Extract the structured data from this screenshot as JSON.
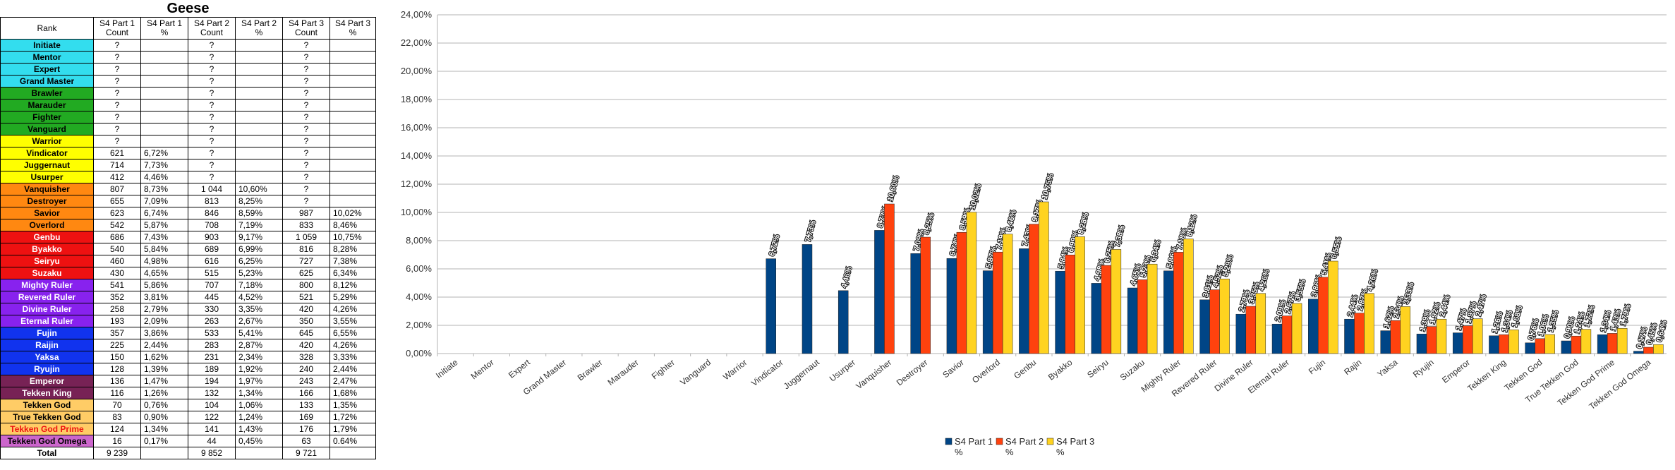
{
  "table": {
    "title": "Geese",
    "headers": [
      "Rank",
      "S4 Part 1 Count",
      "S4 Part 1 %",
      "S4 Part 2 Count",
      "S4 Part 2 %",
      "S4 Part 3 Count",
      "S4 Part 3 %"
    ],
    "rows": [
      {
        "rank": "Initiate",
        "color": "#33ddee",
        "text_color": "#000000",
        "c1": "?",
        "p1": "",
        "c2": "?",
        "p2": "",
        "c3": "?",
        "p3": ""
      },
      {
        "rank": "Mentor",
        "color": "#33ddee",
        "text_color": "#000000",
        "c1": "?",
        "p1": "",
        "c2": "?",
        "p2": "",
        "c3": "?",
        "p3": ""
      },
      {
        "rank": "Expert",
        "color": "#33ddee",
        "text_color": "#000000",
        "c1": "?",
        "p1": "",
        "c2": "?",
        "p2": "",
        "c3": "?",
        "p3": ""
      },
      {
        "rank": "Grand Master",
        "color": "#33ddee",
        "text_color": "#000000",
        "c1": "?",
        "p1": "",
        "c2": "?",
        "p2": "",
        "c3": "?",
        "p3": ""
      },
      {
        "rank": "Brawler",
        "color": "#22aa22",
        "text_color": "#000000",
        "c1": "?",
        "p1": "",
        "c2": "?",
        "p2": "",
        "c3": "?",
        "p3": ""
      },
      {
        "rank": "Marauder",
        "color": "#22aa22",
        "text_color": "#000000",
        "c1": "?",
        "p1": "",
        "c2": "?",
        "p2": "",
        "c3": "?",
        "p3": ""
      },
      {
        "rank": "Fighter",
        "color": "#22aa22",
        "text_color": "#000000",
        "c1": "?",
        "p1": "",
        "c2": "?",
        "p2": "",
        "c3": "?",
        "p3": ""
      },
      {
        "rank": "Vanguard",
        "color": "#22aa22",
        "text_color": "#000000",
        "c1": "?",
        "p1": "",
        "c2": "?",
        "p2": "",
        "c3": "?",
        "p3": ""
      },
      {
        "rank": "Warrior",
        "color": "#ffff00",
        "text_color": "#000000",
        "c1": "?",
        "p1": "",
        "c2": "?",
        "p2": "",
        "c3": "?",
        "p3": ""
      },
      {
        "rank": "Vindicator",
        "color": "#ffff00",
        "text_color": "#000000",
        "c1": "621",
        "p1": "6,72%",
        "c2": "?",
        "p2": "",
        "c3": "?",
        "p3": ""
      },
      {
        "rank": "Juggernaut",
        "color": "#ffff00",
        "text_color": "#000000",
        "c1": "714",
        "p1": "7,73%",
        "c2": "?",
        "p2": "",
        "c3": "?",
        "p3": ""
      },
      {
        "rank": "Usurper",
        "color": "#ffff00",
        "text_color": "#000000",
        "c1": "412",
        "p1": "4,46%",
        "c2": "?",
        "p2": "",
        "c3": "?",
        "p3": ""
      },
      {
        "rank": "Vanquisher",
        "color": "#ff8811",
        "text_color": "#000000",
        "c1": "807",
        "p1": "8,73%",
        "c2": "1 044",
        "p2": "10,60%",
        "c3": "?",
        "p3": ""
      },
      {
        "rank": "Destroyer",
        "color": "#ff8811",
        "text_color": "#000000",
        "c1": "655",
        "p1": "7,09%",
        "c2": "813",
        "p2": "8,25%",
        "c3": "?",
        "p3": ""
      },
      {
        "rank": "Savior",
        "color": "#ff8811",
        "text_color": "#000000",
        "c1": "623",
        "p1": "6,74%",
        "c2": "846",
        "p2": "8,59%",
        "c3": "987",
        "p3": "10,02%"
      },
      {
        "rank": "Overlord",
        "color": "#ff8811",
        "text_color": "#000000",
        "c1": "542",
        "p1": "5,87%",
        "c2": "708",
        "p2": "7,19%",
        "c3": "833",
        "p3": "8,46%"
      },
      {
        "rank": "Genbu",
        "color": "#ee1111",
        "text_color": "#ffffff",
        "c1": "686",
        "p1": "7,43%",
        "c2": "903",
        "p2": "9,17%",
        "c3": "1 059",
        "p3": "10,75%"
      },
      {
        "rank": "Byakko",
        "color": "#ee1111",
        "text_color": "#ffffff",
        "c1": "540",
        "p1": "5,84%",
        "c2": "689",
        "p2": "6,99%",
        "c3": "816",
        "p3": "8,28%"
      },
      {
        "rank": "Seiryu",
        "color": "#ee1111",
        "text_color": "#ffffff",
        "c1": "460",
        "p1": "4,98%",
        "c2": "616",
        "p2": "6,25%",
        "c3": "727",
        "p3": "7,38%"
      },
      {
        "rank": "Suzaku",
        "color": "#ee1111",
        "text_color": "#ffffff",
        "c1": "430",
        "p1": "4,65%",
        "c2": "515",
        "p2": "5,23%",
        "c3": "625",
        "p3": "6,34%"
      },
      {
        "rank": "Mighty Ruler",
        "color": "#8822ee",
        "text_color": "#ffffff",
        "c1": "541",
        "p1": "5,86%",
        "c2": "707",
        "p2": "7,18%",
        "c3": "800",
        "p3": "8,12%"
      },
      {
        "rank": "Revered Ruler",
        "color": "#8822ee",
        "text_color": "#ffffff",
        "c1": "352",
        "p1": "3,81%",
        "c2": "445",
        "p2": "4,52%",
        "c3": "521",
        "p3": "5,29%"
      },
      {
        "rank": "Divine Ruler",
        "color": "#8822ee",
        "text_color": "#ffffff",
        "c1": "258",
        "p1": "2,79%",
        "c2": "330",
        "p2": "3,35%",
        "c3": "420",
        "p3": "4,26%"
      },
      {
        "rank": "Eternal Ruler",
        "color": "#8822ee",
        "text_color": "#ffffff",
        "c1": "193",
        "p1": "2,09%",
        "c2": "263",
        "p2": "2,67%",
        "c3": "350",
        "p3": "3,55%"
      },
      {
        "rank": "Fujin",
        "color": "#1133ee",
        "text_color": "#ffffff",
        "c1": "357",
        "p1": "3,86%",
        "c2": "533",
        "p2": "5,41%",
        "c3": "645",
        "p3": "6,55%"
      },
      {
        "rank": "Raijin",
        "color": "#1133ee",
        "text_color": "#ffffff",
        "c1": "225",
        "p1": "2,44%",
        "c2": "283",
        "p2": "2,87%",
        "c3": "420",
        "p3": "4,26%"
      },
      {
        "rank": "Yaksa",
        "color": "#1133ee",
        "text_color": "#ffffff",
        "c1": "150",
        "p1": "1,62%",
        "c2": "231",
        "p2": "2,34%",
        "c3": "328",
        "p3": "3,33%"
      },
      {
        "rank": "Ryujin",
        "color": "#1133ee",
        "text_color": "#ffffff",
        "c1": "128",
        "p1": "1,39%",
        "c2": "189",
        "p2": "1,92%",
        "c3": "240",
        "p3": "2,44%"
      },
      {
        "rank": "Emperor",
        "color": "#772255",
        "text_color": "#ffffff",
        "c1": "136",
        "p1": "1,47%",
        "c2": "194",
        "p2": "1,97%",
        "c3": "243",
        "p3": "2,47%"
      },
      {
        "rank": "Tekken King",
        "color": "#772255",
        "text_color": "#ffffff",
        "c1": "116",
        "p1": "1,26%",
        "c2": "132",
        "p2": "1,34%",
        "c3": "166",
        "p3": "1,68%"
      },
      {
        "rank": "Tekken God",
        "color": "#ffcc66",
        "text_color": "#000000",
        "c1": "70",
        "p1": "0,76%",
        "c2": "104",
        "p2": "1,06%",
        "c3": "133",
        "p3": "1,35%"
      },
      {
        "rank": "True Tekken God",
        "color": "#ffcc66",
        "text_color": "#000000",
        "c1": "83",
        "p1": "0,90%",
        "c2": "122",
        "p2": "1,24%",
        "c3": "169",
        "p3": "1,72%"
      },
      {
        "rank": "Tekken God Prime",
        "color": "#ffcc66",
        "text_color": "#ee1111",
        "c1": "124",
        "p1": "1,34%",
        "c2": "141",
        "p2": "1,43%",
        "c3": "176",
        "p3": "1,79%"
      },
      {
        "rank": "Tekken God Omega",
        "color": "#cc66cc",
        "text_color": "#000000",
        "c1": "16",
        "p1": "0,17%",
        "c2": "44",
        "p2": "0,45%",
        "c3": "63",
        "p3": "0.64%"
      }
    ],
    "total": {
      "label": "Total",
      "c1": "9 239",
      "c2": "9 852",
      "c3": "9 721"
    }
  },
  "chart_data": {
    "type": "bar",
    "categories": [
      "Initiate",
      "Mentor",
      "Expert",
      "Grand Master",
      "Brawler",
      "Marauder",
      "Fighter",
      "Vanguard",
      "Warrior",
      "Vindicator",
      "Juggernaut",
      "Usurper",
      "Vanquisher",
      "Destroyer",
      "Savior",
      "Overlord",
      "Genbu",
      "Byakko",
      "Seiryu",
      "Suzaku",
      "Mighty Ruler",
      "Revered Ruler",
      "Divine Ruler",
      "Eternal Ruler",
      "Fujin",
      "Rajin",
      "Yaksa",
      "Ryujin",
      "Emperor",
      "Tekken King",
      "Tekken God",
      "True Tekken God",
      "Tekken God Prime",
      "Tekken God Omega"
    ],
    "series": [
      {
        "name": "S4 Part 1 %",
        "color": "#004586",
        "values": [
          null,
          null,
          null,
          null,
          null,
          null,
          null,
          null,
          null,
          6.72,
          7.73,
          4.46,
          8.73,
          7.09,
          6.74,
          5.87,
          7.43,
          5.84,
          4.98,
          4.65,
          5.86,
          3.81,
          2.79,
          2.09,
          3.86,
          2.44,
          1.62,
          1.39,
          1.47,
          1.26,
          0.76,
          0.9,
          1.34,
          0.17
        ],
        "labels": [
          null,
          null,
          null,
          null,
          null,
          null,
          null,
          null,
          null,
          "6,72%",
          "7,73%",
          "4,46%",
          "8,73%",
          "7,09%",
          "6,74%",
          "5,87%",
          "7,43%",
          "5,84%",
          "4,98%",
          "4,65%",
          "5,86%",
          "3,81%",
          "2,79%",
          "2,09%",
          "3,86%",
          "2,44%",
          "1,62%",
          "1,39%",
          "1,47%",
          "1,26%",
          "0,76%",
          "0,90%",
          "1,34%",
          "0,17%"
        ]
      },
      {
        "name": "S4 Part 2 %",
        "color": "#ff420e",
        "values": [
          null,
          null,
          null,
          null,
          null,
          null,
          null,
          null,
          null,
          null,
          null,
          null,
          10.6,
          8.25,
          8.59,
          7.19,
          9.17,
          6.99,
          6.25,
          5.23,
          7.18,
          4.52,
          3.35,
          2.67,
          5.41,
          2.87,
          2.34,
          1.92,
          1.97,
          1.34,
          1.06,
          1.24,
          1.43,
          0.45
        ],
        "labels": [
          null,
          null,
          null,
          null,
          null,
          null,
          null,
          null,
          null,
          null,
          null,
          null,
          "10,60%",
          "8,25%",
          "8,59%",
          "7,19%",
          "9,17%",
          "6,99%",
          "6,25%",
          "5,23%",
          "7,18%",
          "4,52%",
          "3,35%",
          "2,67%",
          "5,41%",
          "2,87%",
          "2,34%",
          "1,92%",
          "1,97%",
          "1,34%",
          "1,06%",
          "1,24%",
          "1,43%",
          "0,45%"
        ]
      },
      {
        "name": "S4 Part 3 %",
        "color": "#ffd320",
        "values": [
          null,
          null,
          null,
          null,
          null,
          null,
          null,
          null,
          null,
          null,
          null,
          null,
          null,
          null,
          10.02,
          8.46,
          10.75,
          8.28,
          7.38,
          6.34,
          8.12,
          5.29,
          4.26,
          3.55,
          6.55,
          4.26,
          3.33,
          2.44,
          2.47,
          1.68,
          1.35,
          1.72,
          1.79,
          0.64
        ],
        "labels": [
          null,
          null,
          null,
          null,
          null,
          null,
          null,
          null,
          null,
          null,
          null,
          null,
          null,
          null,
          "10,02%",
          "8,46%",
          "10,75%",
          "8,28%",
          "7,38%",
          "6,34%",
          "8,12%",
          "5,29%",
          "4,26%",
          "3,55%",
          "6,55%",
          "4,26%",
          "3,33%",
          "2,44%",
          "2,47%",
          "1,68%",
          "1,35%",
          "1,72%",
          "1,79%",
          "0,64%"
        ]
      }
    ],
    "ylim": [
      0,
      24
    ],
    "yticks": [
      "0,00%",
      "2,00%",
      "4,00%",
      "6,00%",
      "8,00%",
      "10,00%",
      "12,00%",
      "14,00%",
      "16,00%",
      "18,00%",
      "20,00%",
      "22,00%",
      "24,00%"
    ],
    "grid": true,
    "legend": "bottom-center",
    "legend_entries": [
      {
        "line1": "S4 Part 1",
        "line2": "%"
      },
      {
        "line1": "S4 Part 2",
        "line2": "%"
      },
      {
        "line1": "S4 Part 3",
        "line2": "%"
      }
    ],
    "xlabel": "",
    "ylabel": ""
  }
}
